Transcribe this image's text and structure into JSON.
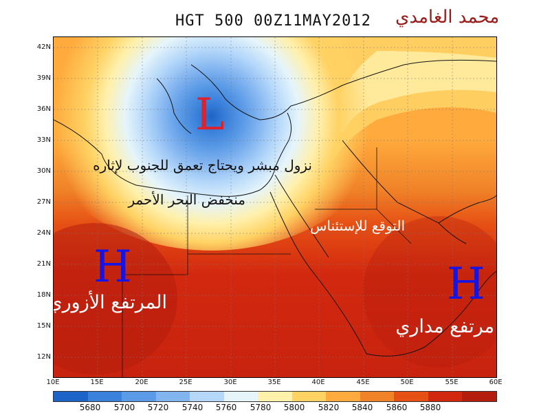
{
  "title": "HGT 500 00Z11MAY2012",
  "author": "محمد الغامدي",
  "lat_labels": [
    "42N",
    "39N",
    "36N",
    "33N",
    "30N",
    "27N",
    "24N",
    "21N",
    "18N",
    "15N",
    "12N"
  ],
  "lon_labels": [
    "10E",
    "15E",
    "20E",
    "25E",
    "30E",
    "35E",
    "40E",
    "45E",
    "50E",
    "55E",
    "60E"
  ],
  "colorbar": {
    "colors": [
      "#1e64c8",
      "#3c82dc",
      "#5a9ae6",
      "#82b4f0",
      "#b4d7fa",
      "#e6f5fa",
      "#fff0aa",
      "#ffd264",
      "#ffaa3c",
      "#f08228",
      "#e65014",
      "#d2280f",
      "#b41e0f"
    ],
    "labels": [
      "5680",
      "5700",
      "5720",
      "5740",
      "5760",
      "5780",
      "5800",
      "5820",
      "5840",
      "5860",
      "5880"
    ]
  },
  "low": {
    "letter": "L",
    "color": "#e0202a"
  },
  "highs": [
    {
      "letter": "H",
      "color": "#1414e6"
    },
    {
      "letter": "H",
      "color": "#1414e6"
    }
  ],
  "annotations": {
    "red_sea_line1": "نزول مبشر ويحتاج تعمق للجنوب لإثاره",
    "red_sea_line2": "منخفض البحر الأحمر",
    "instability": "التوقع للإستئناس",
    "azores": "المرتفع الأزوري",
    "tropical": "مرتفع مداري"
  }
}
